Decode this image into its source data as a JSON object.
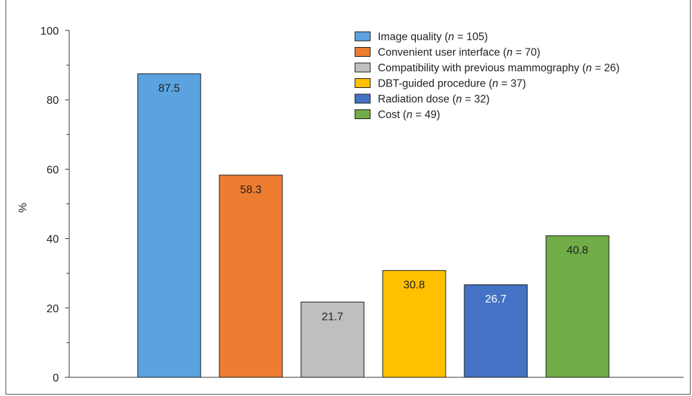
{
  "chart_data": {
    "type": "bar",
    "ylabel": "%",
    "ylim": [
      0,
      100
    ],
    "yticks": [
      0,
      20,
      40,
      60,
      80,
      100
    ],
    "grid": false,
    "legend_position": "top-right",
    "categories": [
      "Image quality",
      "Convenient user interface",
      "Compatibility with previous mammography",
      "DBT-guided procedure",
      "Radiation dose",
      "Cost"
    ],
    "n_values": [
      105,
      70,
      26,
      37,
      32,
      49
    ],
    "values": [
      87.5,
      58.3,
      21.7,
      30.8,
      26.7,
      40.8
    ],
    "value_labels": [
      "87.5",
      "58.3",
      "21.7",
      "30.8",
      "26.7",
      "40.8"
    ],
    "colors": [
      "#5ba3e0",
      "#ed7d31",
      "#bfbfbf",
      "#ffc000",
      "#4472c4",
      "#70ad47"
    ],
    "label_colors": [
      "#222222",
      "#222222",
      "#222222",
      "#222222",
      "#ffffff",
      "#222222"
    ]
  }
}
